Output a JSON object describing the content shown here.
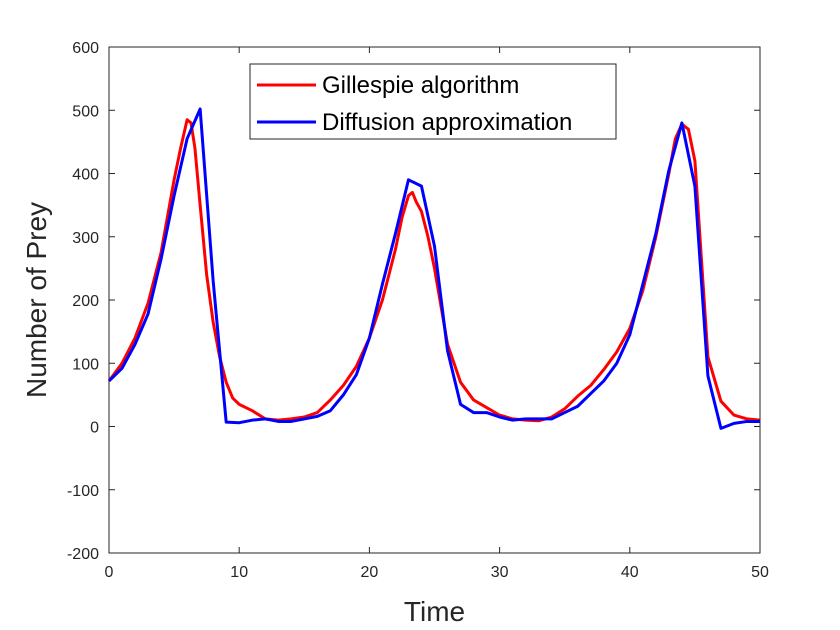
{
  "chart_data": {
    "type": "line",
    "title": "",
    "xlabel": "Time",
    "ylabel": "Number of Prey",
    "xlim": [
      0,
      50
    ],
    "ylim": [
      -200,
      600
    ],
    "xticks": [
      0,
      10,
      20,
      30,
      40,
      50
    ],
    "yticks": [
      -200,
      -100,
      0,
      100,
      200,
      300,
      400,
      500,
      600
    ],
    "grid": false,
    "legend_position": "top-center",
    "series": [
      {
        "name": "Gillespie algorithm",
        "color": "#ff0000",
        "x": [
          0,
          1,
          2,
          3,
          4,
          5,
          5.5,
          6,
          6.3,
          6.6,
          7,
          7.5,
          8,
          8.5,
          9,
          9.5,
          10,
          11,
          12,
          13,
          14,
          15,
          16,
          17,
          18,
          19,
          20,
          21,
          22,
          22.5,
          23,
          23.3,
          23.6,
          24,
          24.5,
          25,
          25.5,
          26,
          27,
          28,
          29,
          30,
          31,
          32,
          33,
          34,
          35,
          36,
          37,
          38,
          39,
          40,
          41,
          42,
          43,
          43.5,
          44,
          44.5,
          45,
          46,
          47,
          48,
          49,
          50
        ],
        "y": [
          72,
          100,
          140,
          195,
          275,
          390,
          440,
          485,
          480,
          440,
          350,
          240,
          165,
          110,
          70,
          45,
          35,
          25,
          12,
          10,
          12,
          15,
          22,
          42,
          65,
          95,
          140,
          200,
          280,
          330,
          365,
          370,
          355,
          340,
          300,
          250,
          190,
          130,
          70,
          42,
          30,
          18,
          12,
          10,
          9,
          15,
          28,
          48,
          65,
          90,
          118,
          155,
          215,
          300,
          400,
          455,
          478,
          470,
          420,
          110,
          40,
          18,
          12,
          10
        ]
      },
      {
        "name": "Diffusion approximation",
        "color": "#0000ff",
        "x": [
          0,
          1,
          2,
          3,
          4,
          5,
          6,
          7,
          8,
          9,
          10,
          11,
          12,
          13,
          14,
          15,
          16,
          17,
          18,
          19,
          20,
          21,
          22,
          23,
          24,
          25,
          26,
          27,
          28,
          29,
          30,
          31,
          32,
          33,
          34,
          35,
          36,
          37,
          38,
          39,
          40,
          41,
          42,
          43,
          44,
          45,
          46,
          47,
          48,
          49,
          50
        ],
        "y": [
          72,
          92,
          130,
          178,
          265,
          365,
          455,
          502,
          230,
          7,
          6,
          10,
          12,
          8,
          8,
          12,
          16,
          25,
          50,
          82,
          140,
          225,
          305,
          390,
          380,
          285,
          120,
          35,
          22,
          22,
          15,
          10,
          12,
          12,
          12,
          22,
          32,
          52,
          72,
          100,
          145,
          225,
          305,
          405,
          480,
          380,
          80,
          -3,
          5,
          8,
          8
        ]
      }
    ]
  }
}
